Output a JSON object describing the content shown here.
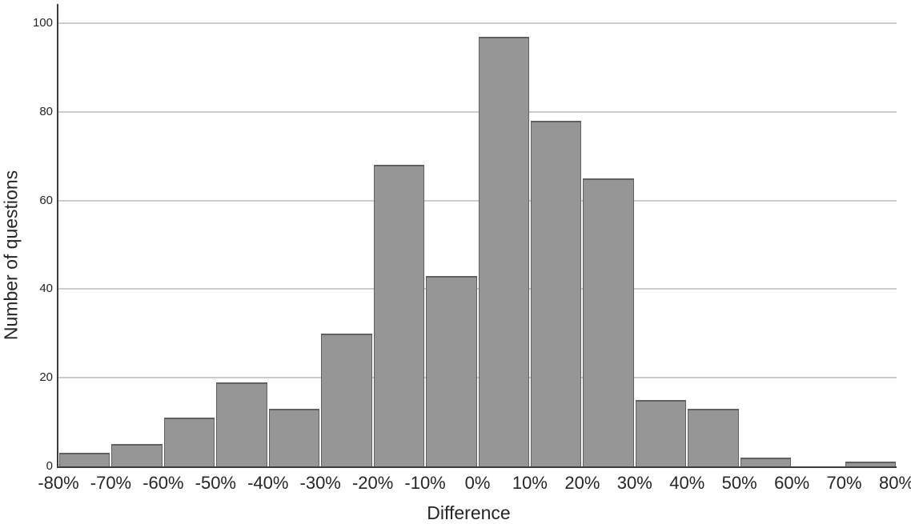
{
  "chart_data": {
    "type": "bar",
    "subtype": "histogram",
    "title": "",
    "xlabel": "Difference",
    "ylabel": "Number of questions",
    "x_tick_labels": [
      "-80%",
      "-70%",
      "-60%",
      "-50%",
      "-40%",
      "-30%",
      "-20%",
      "-10%",
      "0%",
      "10%",
      "20%",
      "30%",
      "40%",
      "50%",
      "60%",
      "70%",
      "80%"
    ],
    "y_ticks": [
      0,
      20,
      40,
      60,
      80,
      100
    ],
    "ylim": [
      0,
      100
    ],
    "grid": "horizontal",
    "legend": "none",
    "bins": [
      {
        "range": "-80% to -70%",
        "count": 3
      },
      {
        "range": "-70% to -60%",
        "count": 5
      },
      {
        "range": "-60% to -50%",
        "count": 11
      },
      {
        "range": "-50% to -40%",
        "count": 19
      },
      {
        "range": "-40% to -30%",
        "count": 13
      },
      {
        "range": "-30% to -20%",
        "count": 30
      },
      {
        "range": "-20% to -10%",
        "count": 68
      },
      {
        "range": "-10% to 0%",
        "count": 43
      },
      {
        "range": "0% to 10%",
        "count": 97
      },
      {
        "range": "10% to 20%",
        "count": 78
      },
      {
        "range": "20% to 30%",
        "count": 65
      },
      {
        "range": "30% to 40%",
        "count": 15
      },
      {
        "range": "40% to 50%",
        "count": 13
      },
      {
        "range": "50% to 60%",
        "count": 2
      },
      {
        "range": "60% to 70%",
        "count": 0
      },
      {
        "range": "70% to 80%",
        "count": 1
      }
    ],
    "colors": {
      "bar_fill": "#969696",
      "bar_border": "#616161",
      "gridline": "#cccccc",
      "axis_line": "#3c3c3c",
      "text": "#262626",
      "background": "#ffffff"
    }
  }
}
